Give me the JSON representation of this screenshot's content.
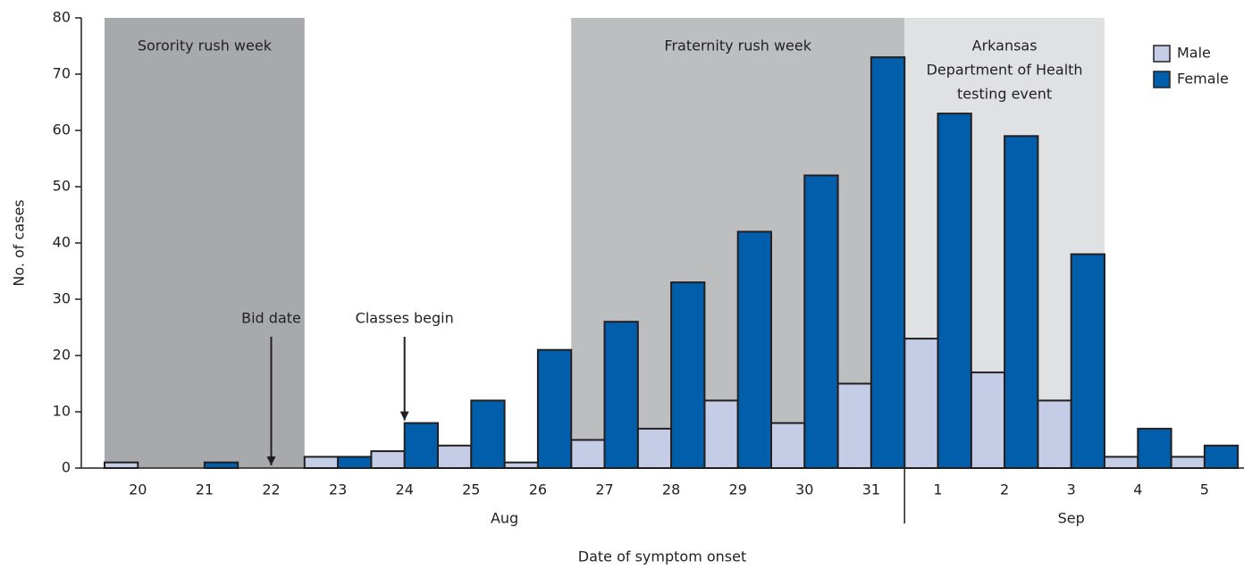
{
  "chart_data": {
    "type": "bar",
    "x_label": "Date of symptom onset",
    "y_label": "No. of cases",
    "categories": [
      "20",
      "21",
      "22",
      "23",
      "24",
      "25",
      "26",
      "27",
      "28",
      "29",
      "30",
      "31",
      "1",
      "2",
      "3",
      "4",
      "5"
    ],
    "groups": [
      {
        "label": "Aug",
        "start": 0,
        "end": 11
      },
      {
        "label": "Sep",
        "start": 12,
        "end": 16
      }
    ],
    "series": [
      {
        "name": "Male",
        "color": "#c5cde6",
        "values": [
          1,
          0,
          0,
          2,
          3,
          4,
          1,
          5,
          7,
          12,
          8,
          15,
          23,
          17,
          12,
          2,
          2
        ]
      },
      {
        "name": "Female",
        "color": "#005eaa",
        "values": [
          0,
          1,
          0,
          2,
          8,
          12,
          21,
          26,
          33,
          42,
          52,
          73,
          63,
          59,
          38,
          7,
          4
        ]
      }
    ],
    "ylim": [
      0,
      80
    ],
    "yticks": [
      0,
      10,
      20,
      30,
      40,
      50,
      60,
      70,
      80
    ],
    "legend": "upper right",
    "shaded_regions": [
      {
        "lines": [
          "Sorority rush week"
        ],
        "start": 0,
        "end": 2,
        "color": "#a7a9ac"
      },
      {
        "lines": [
          "Fraternity rush week"
        ],
        "start": 7,
        "end": 11,
        "color": "#bcbec0"
      },
      {
        "lines": [
          "Arkansas",
          "Department of Health",
          "testing event"
        ],
        "start": 12,
        "end": 14,
        "color": "#e0e1e2"
      }
    ],
    "annotations": [
      {
        "label": "Bid date",
        "category": 2
      },
      {
        "label": "Classes begin",
        "category": 4
      }
    ]
  }
}
